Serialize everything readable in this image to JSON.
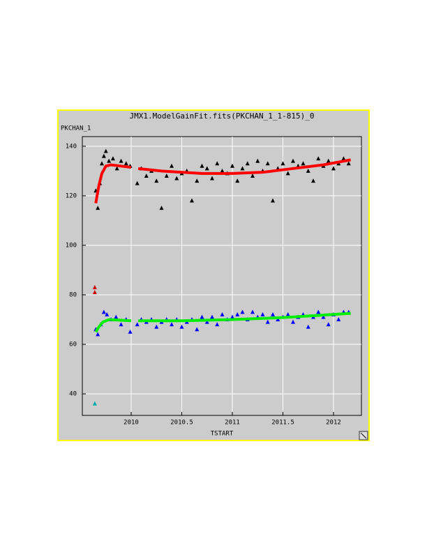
{
  "chart_data": {
    "type": "scatter",
    "title": "JMX1.ModelGainFit.fits(PKCHAN_1_1-815)_0",
    "x_label": "TSTART",
    "y_label": "PKCHAN_1",
    "xlim": [
      2009.517,
      2012.276
    ],
    "ylim": [
      31.3,
      143.9
    ],
    "xticks": [
      2010,
      2010.5,
      2011,
      2011.5,
      2012
    ],
    "yticks": [
      40,
      60,
      80,
      100,
      120,
      140
    ],
    "grid": true,
    "series": [
      {
        "color": "#000000",
        "style": "triangle",
        "x": [
          2009.65,
          2009.67,
          2009.69,
          2009.71,
          2009.73,
          2009.75,
          2009.78,
          2009.82,
          2009.86,
          2009.9,
          2009.95,
          2009.99,
          2010.06,
          2010.1,
          2010.15,
          2010.2,
          2010.25,
          2010.3,
          2010.35,
          2010.4,
          2010.45,
          2010.5,
          2010.55,
          2010.6,
          2010.65,
          2010.7,
          2010.75,
          2010.8,
          2010.85,
          2010.9,
          2010.95,
          2011.0,
          2011.05,
          2011.1,
          2011.15,
          2011.2,
          2011.25,
          2011.3,
          2011.35,
          2011.4,
          2011.45,
          2011.5,
          2011.55,
          2011.6,
          2011.65,
          2011.7,
          2011.75,
          2011.8,
          2011.85,
          2011.9,
          2011.95,
          2012.0,
          2012.05,
          2012.1,
          2012.15
        ],
        "values": [
          122,
          115,
          125,
          133,
          136,
          138,
          134,
          135,
          131,
          134,
          133,
          132,
          125,
          131,
          128,
          130,
          126,
          115,
          128,
          132,
          127,
          129,
          130,
          118,
          126,
          132,
          131,
          127,
          133,
          130,
          129,
          132,
          126,
          131,
          133,
          128,
          134,
          130,
          133,
          118,
          131,
          133,
          129,
          134,
          132,
          133,
          130,
          126,
          135,
          132,
          134,
          131,
          133,
          135,
          133
        ]
      },
      {
        "color": "#ff0000",
        "style": "line",
        "x": [
          2009.65,
          2009.68,
          2009.71,
          2009.75,
          2009.8,
          2010.0,
          2010.03,
          2010.07,
          2010.3,
          2010.7,
          2011.0,
          2011.3,
          2011.6,
          2011.9,
          2012.17
        ],
        "values": [
          117,
          124,
          129,
          132,
          132.5,
          131.5,
          null,
          131,
          130,
          129,
          129,
          129.5,
          131,
          132.5,
          134.5
        ]
      },
      {
        "color": "#0000ff",
        "style": "triangle",
        "x": [
          2009.65,
          2009.67,
          2009.7,
          2009.73,
          2009.76,
          2009.8,
          2009.85,
          2009.9,
          2009.95,
          2009.99,
          2010.06,
          2010.1,
          2010.15,
          2010.2,
          2010.25,
          2010.3,
          2010.35,
          2010.4,
          2010.45,
          2010.5,
          2010.55,
          2010.6,
          2010.65,
          2010.7,
          2010.75,
          2010.8,
          2010.85,
          2010.9,
          2010.95,
          2011.0,
          2011.05,
          2011.1,
          2011.15,
          2011.2,
          2011.25,
          2011.3,
          2011.35,
          2011.4,
          2011.45,
          2011.5,
          2011.55,
          2011.6,
          2011.65,
          2011.7,
          2011.75,
          2011.8,
          2011.85,
          2011.9,
          2011.95,
          2012.0,
          2012.05,
          2012.1,
          2012.15
        ],
        "values": [
          66,
          64,
          68,
          73,
          72,
          70,
          71,
          68,
          70,
          65,
          68,
          70,
          69,
          70,
          67,
          69,
          70,
          68,
          70,
          67,
          69,
          70,
          66,
          71,
          69,
          71,
          68,
          72,
          70,
          71,
          72,
          73,
          70,
          73,
          71,
          72,
          69,
          72,
          70,
          71,
          72,
          69,
          71,
          72,
          67,
          71,
          73,
          71,
          68,
          72,
          70,
          73,
          73
        ]
      },
      {
        "color": "#00ee00",
        "style": "line",
        "x": [
          2009.65,
          2009.68,
          2009.72,
          2009.78,
          2010.0,
          2010.03,
          2010.07,
          2010.5,
          2011.0,
          2011.5,
          2012.17
        ],
        "values": [
          65,
          67,
          69,
          70,
          69.5,
          null,
          69.5,
          69.5,
          70,
          70.8,
          72.5
        ]
      },
      {
        "color": "#cc0000",
        "style": "triangle",
        "x": [
          2009.64,
          2009.64
        ],
        "values": [
          83,
          81
        ]
      },
      {
        "color": "#00aaaa",
        "style": "triangle",
        "x": [
          2009.64
        ],
        "values": [
          36
        ]
      }
    ]
  }
}
